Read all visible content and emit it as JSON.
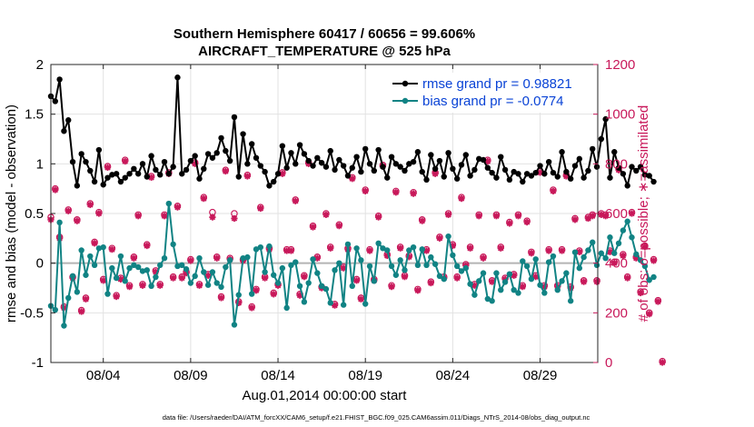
{
  "chart_data": {
    "type": "line",
    "title": "Southern Hemisphere 60417 / 60656 = 99.606%",
    "subtitle": "AIRCRAFT_TEMPERATURE @ 525 hPa",
    "xlabel": "Aug.01,2014 00:00:00 start",
    "ylabel": "rmse and bias (model - observation)",
    "y2label": "# of obs: o=possible; ∗=assimilated",
    "footer": "data file: /Users/raeder/DAI/ATM_forcXX/CAM6_setup/f.e21.FHIST_BGC.f09_025.CAM6assim.011/Diags_NTrS_2014-08/obs_diag_output.nc",
    "xlim": [
      1,
      32.3
    ],
    "ylim": [
      -1,
      2
    ],
    "y2lim": [
      0,
      1200
    ],
    "x_ticks": [
      {
        "value": 4,
        "label": "08/04"
      },
      {
        "value": 9,
        "label": "08/09"
      },
      {
        "value": 14,
        "label": "08/14"
      },
      {
        "value": 19,
        "label": "08/19"
      },
      {
        "value": 24,
        "label": "08/24"
      },
      {
        "value": 29,
        "label": "08/29"
      }
    ],
    "y_ticks": [
      {
        "value": -1,
        "label": "-1"
      },
      {
        "value": -0.5,
        "label": "-0.5"
      },
      {
        "value": 0,
        "label": "0"
      },
      {
        "value": 0.5,
        "label": "0.5"
      },
      {
        "value": 1,
        "label": "1"
      },
      {
        "value": 1.5,
        "label": "1.5"
      },
      {
        "value": 2,
        "label": "2"
      }
    ],
    "y2_ticks": [
      {
        "value": 0,
        "label": "0"
      },
      {
        "value": 200,
        "label": "200"
      },
      {
        "value": 400,
        "label": "400"
      },
      {
        "value": 600,
        "label": "600"
      },
      {
        "value": 800,
        "label": "800"
      },
      {
        "value": 1000,
        "label": "1000"
      },
      {
        "value": 1200,
        "label": "1200"
      }
    ],
    "x_start": 1.0,
    "x_step": 0.25,
    "series": [
      {
        "name": "rmse grand pr = 0.98821",
        "color": "#000000",
        "axis": "left",
        "values": [
          1.68,
          1.63,
          1.85,
          1.33,
          1.44,
          1.02,
          0.78,
          1.1,
          1.02,
          0.93,
          0.82,
          1.14,
          0.79,
          0.86,
          0.89,
          0.9,
          0.82,
          0.86,
          0.9,
          0.95,
          0.9,
          1.0,
          0.87,
          1.08,
          0.94,
          0.89,
          1.02,
          0.9,
          0.97,
          1.87,
          0.9,
          0.94,
          1.03,
          1.08,
          0.85,
          0.95,
          1.1,
          1.06,
          1.11,
          1.26,
          1.13,
          1.03,
          1.47,
          0.87,
          1.3,
          1.0,
          1.2,
          1.06,
          0.98,
          0.92,
          0.78,
          0.82,
          0.9,
          1.18,
          0.96,
          1.11,
          1.0,
          1.19,
          1.1,
          1.03,
          0.98,
          1.06,
          1.01,
          0.97,
          1.13,
          0.94,
          1.04,
          0.98,
          0.88,
          0.96,
          1.07,
          0.92,
          1.15,
          1.0,
          0.93,
          1.14,
          0.97,
          0.86,
          1.07,
          1.0,
          0.97,
          0.93,
          1.0,
          1.02,
          1.12,
          0.92,
          0.84,
          1.09,
          0.95,
          1.03,
          0.87,
          1.11,
          0.95,
          0.85,
          0.99,
          1.09,
          0.88,
          0.94,
          1.05,
          1.04,
          0.96,
          0.91,
          0.86,
          1.07,
          0.94,
          0.84,
          0.92,
          0.9,
          0.82,
          0.9,
          0.88,
          0.91,
          0.98,
          0.9,
          1.02,
          0.91,
          0.87,
          1.12,
          0.92,
          0.85,
          0.98,
          1.05,
          0.86,
          0.93,
          1.15,
          0.97,
          1.25,
          1.45,
          0.86,
          1.12,
          0.96,
          0.9,
          0.78,
          0.97,
          0.93,
          0.97,
          0.89,
          0.88,
          0.82
        ]
      },
      {
        "name": "bias grand pr = -0.0774",
        "color": "#118384",
        "axis": "left",
        "values": [
          -0.43,
          -0.47,
          0.41,
          -0.63,
          -0.35,
          -0.13,
          -0.29,
          0.13,
          -0.12,
          0.07,
          -0.02,
          0.15,
          0.16,
          -0.31,
          -0.05,
          -0.15,
          0.07,
          -0.18,
          -0.05,
          -0.02,
          -0.04,
          -0.08,
          -0.07,
          -0.23,
          -0.14,
          -0.02,
          0.05,
          0.6,
          0.19,
          -0.03,
          -0.02,
          -0.06,
          -0.2,
          -0.13,
          0.05,
          -0.09,
          -0.22,
          -0.09,
          -0.2,
          -0.24,
          -0.04,
          0.03,
          -0.62,
          -0.32,
          0.05,
          0.06,
          -0.31,
          0.14,
          0.16,
          -0.09,
          0.17,
          -0.12,
          -0.2,
          -0.05,
          -0.45,
          -0.02,
          0.01,
          -0.23,
          -0.39,
          -0.2,
          0.04,
          -0.1,
          -0.23,
          -0.26,
          -0.4,
          -0.07,
          0.0,
          -0.42,
          0.19,
          -0.23,
          0.15,
          0.03,
          -0.41,
          -0.03,
          -0.18,
          0.2,
          0.15,
          0.13,
          -0.03,
          -0.12,
          0.03,
          -0.07,
          0.13,
          0.16,
          -0.02,
          0.14,
          -0.02,
          0.06,
          -0.01,
          -0.13,
          -0.16,
          0.27,
          0.08,
          -0.03,
          -0.08,
          -0.05,
          -0.21,
          -0.32,
          -0.18,
          -0.1,
          -0.36,
          -0.38,
          -0.1,
          -0.27,
          -0.19,
          -0.11,
          -0.27,
          -0.3,
          0.02,
          -0.03,
          -0.16,
          0.04,
          -0.22,
          -0.3,
          0.01,
          0.07,
          -0.27,
          -0.18,
          -0.1,
          -0.38,
          0.11,
          -0.05,
          0.06,
          0.13,
          0.21,
          -0.02,
          0.1,
          0.05,
          0.26,
          0.1,
          0.2,
          0.33,
          0.42,
          0.26,
          0.09,
          0.03,
          -0.03,
          -0.17,
          -0.14
        ]
      }
    ],
    "obs_assimilated": {
      "name": "# assimilated",
      "color": "#c8185a",
      "axis": "right",
      "marker": "asterisk",
      "values": [
        575,
        695,
        500,
        220,
        610,
        340,
        570,
        205,
        255,
        635,
        480,
        600,
        330,
        785,
        455,
        265,
        335,
        810,
        305,
        420,
        590,
        310,
        470,
        745,
        365,
        310,
        590,
        760,
        340,
        625,
        340,
        360,
        410,
        800,
        310,
        660,
        350,
        585,
        420,
        260,
        770,
        415,
        580,
        240,
        410,
        750,
        220,
        290,
        620,
        340,
        455,
        275,
        310,
        760,
        450,
        450,
        650,
        270,
        345,
        800,
        545,
        420,
        300,
        595,
        460,
        230,
        550,
        380,
        455,
        740,
        330,
        255,
        690,
        450,
        330,
        585,
        790,
        430,
        305,
        685,
        460,
        345,
        425,
        680,
        290,
        570,
        450,
        320,
        760,
        500,
        340,
        595,
        470,
        340,
        660,
        390,
        460,
        310,
        590,
        420,
        810,
        325,
        590,
        460,
        335,
        560,
        350,
        590,
        305,
        565,
        440,
        345,
        765,
        305,
        450,
        690,
        305,
        450,
        750,
        300,
        575,
        445,
        325,
        580,
        590,
        325,
        595,
        590,
        445,
        400,
        775,
        430,
        340,
        600,
        420,
        280,
        465,
        195,
        410,
        245,
        0
      ]
    },
    "obs_possible": {
      "name": "# possible",
      "color": "#c8185a",
      "axis": "right",
      "marker": "circle",
      "values": [
        585,
        700,
        505,
        225,
        615,
        345,
        575,
        210,
        260,
        640,
        485,
        605,
        335,
        790,
        460,
        270,
        340,
        815,
        310,
        425,
        595,
        315,
        475,
        750,
        370,
        315,
        595,
        765,
        345,
        630,
        345,
        365,
        415,
        805,
        315,
        665,
        355,
        605,
        425,
        265,
        775,
        420,
        600,
        245,
        415,
        755,
        225,
        295,
        625,
        345,
        460,
        280,
        315,
        765,
        455,
        455,
        655,
        275,
        350,
        805,
        550,
        425,
        305,
        600,
        465,
        235,
        555,
        385,
        460,
        745,
        335,
        260,
        695,
        455,
        335,
        590,
        795,
        435,
        310,
        690,
        465,
        350,
        430,
        685,
        295,
        575,
        455,
        325,
        765,
        505,
        345,
        600,
        475,
        345,
        665,
        395,
        465,
        315,
        595,
        425,
        815,
        330,
        595,
        465,
        340,
        565,
        355,
        595,
        310,
        570,
        445,
        350,
        770,
        310,
        455,
        695,
        310,
        455,
        755,
        305,
        580,
        450,
        330,
        585,
        595,
        330,
        600,
        595,
        450,
        405,
        780,
        435,
        345,
        605,
        425,
        285,
        470,
        200,
        415,
        250,
        5
      ]
    }
  }
}
